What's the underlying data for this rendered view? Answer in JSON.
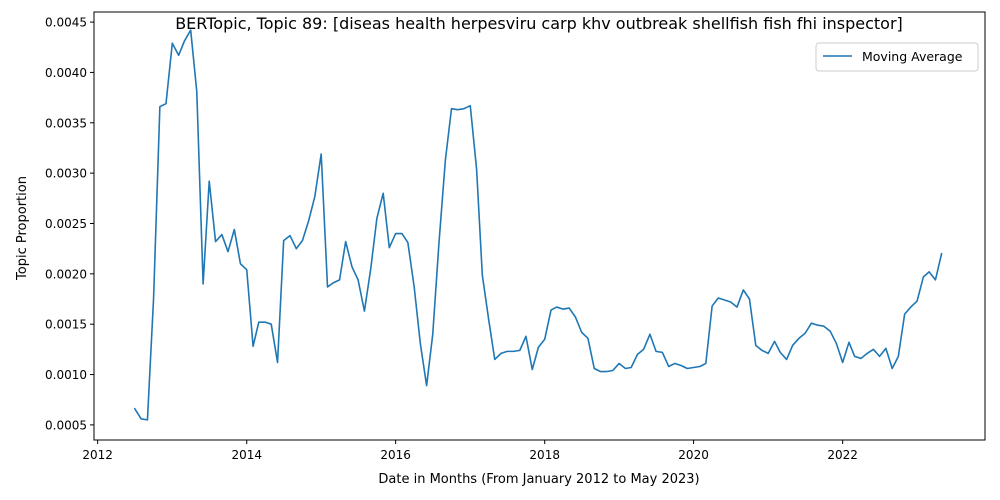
{
  "chart_data": {
    "type": "line",
    "title": "BERTopic, Topic 89: [diseas health herpesviru carp khv outbreak shellfish fish fhi inspector]",
    "xlabel": "Date in Months (From January 2012 to May 2023)",
    "ylabel": "Topic Proportion",
    "xlim": [
      "2011-12-14",
      "2023-11-30"
    ],
    "ylim": [
      0.00035,
      0.0046
    ],
    "xticks": [
      {
        "label": "2012",
        "date": "2012-01-01"
      },
      {
        "label": "2014",
        "date": "2014-01-01"
      },
      {
        "label": "2016",
        "date": "2016-01-01"
      },
      {
        "label": "2018",
        "date": "2018-01-01"
      },
      {
        "label": "2020",
        "date": "2020-01-01"
      },
      {
        "label": "2022",
        "date": "2022-01-01"
      }
    ],
    "yticks": [
      {
        "label": "0.0005",
        "value": 0.0005
      },
      {
        "label": "0.0010",
        "value": 0.001
      },
      {
        "label": "0.0015",
        "value": 0.0015
      },
      {
        "label": "0.0020",
        "value": 0.002
      },
      {
        "label": "0.0025",
        "value": 0.0025
      },
      {
        "label": "0.0030",
        "value": 0.003
      },
      {
        "label": "0.0035",
        "value": 0.0035
      },
      {
        "label": "0.0040",
        "value": 0.004
      },
      {
        "label": "0.0045",
        "value": 0.0045
      }
    ],
    "grid": false,
    "legend_position": "top-right",
    "series": [
      {
        "name": "Moving Average",
        "color": "#1f77b4",
        "x": [
          "2012-07",
          "2012-08",
          "2012-09",
          "2012-10",
          "2012-11",
          "2012-12",
          "2013-01",
          "2013-02",
          "2013-03",
          "2013-04",
          "2013-05",
          "2013-06",
          "2013-07",
          "2013-08",
          "2013-09",
          "2013-10",
          "2013-11",
          "2013-12",
          "2014-01",
          "2014-02",
          "2014-03",
          "2014-04",
          "2014-05",
          "2014-06",
          "2014-07",
          "2014-08",
          "2014-09",
          "2014-10",
          "2014-11",
          "2014-12",
          "2015-01",
          "2015-02",
          "2015-03",
          "2015-04",
          "2015-05",
          "2015-06",
          "2015-07",
          "2015-08",
          "2015-09",
          "2015-10",
          "2015-11",
          "2015-12",
          "2016-01",
          "2016-02",
          "2016-03",
          "2016-04",
          "2016-05",
          "2016-06",
          "2016-07",
          "2016-08",
          "2016-09",
          "2016-10",
          "2016-11",
          "2016-12",
          "2017-01",
          "2017-02",
          "2017-03",
          "2017-04",
          "2017-05",
          "2017-06",
          "2017-07",
          "2017-08",
          "2017-09",
          "2017-10",
          "2017-11",
          "2017-12",
          "2018-01",
          "2018-02",
          "2018-03",
          "2018-04",
          "2018-05",
          "2018-06",
          "2018-07",
          "2018-08",
          "2018-09",
          "2018-10",
          "2018-11",
          "2018-12",
          "2019-01",
          "2019-02",
          "2019-03",
          "2019-04",
          "2019-05",
          "2019-06",
          "2019-07",
          "2019-08",
          "2019-09",
          "2019-10",
          "2019-11",
          "2019-12",
          "2020-01",
          "2020-02",
          "2020-03",
          "2020-04",
          "2020-05",
          "2020-06",
          "2020-07",
          "2020-08",
          "2020-09",
          "2020-10",
          "2020-11",
          "2020-12",
          "2021-01",
          "2021-02",
          "2021-03",
          "2021-04",
          "2021-05",
          "2021-06",
          "2021-07",
          "2021-08",
          "2021-09",
          "2021-10",
          "2021-11",
          "2021-12",
          "2022-01",
          "2022-02",
          "2022-03",
          "2022-04",
          "2022-05",
          "2022-06",
          "2022-07",
          "2022-08",
          "2022-09",
          "2022-10",
          "2022-11",
          "2022-12",
          "2023-01",
          "2023-02",
          "2023-03",
          "2023-04",
          "2023-05"
        ],
        "values": [
          0.00066,
          0.00056,
          0.00055,
          0.00175,
          0.00366,
          0.00369,
          0.00429,
          0.00417,
          0.00431,
          0.00442,
          0.00381,
          0.0019,
          0.00292,
          0.00232,
          0.00239,
          0.00222,
          0.00244,
          0.0021,
          0.00204,
          0.00128,
          0.00152,
          0.00152,
          0.0015,
          0.00112,
          0.00233,
          0.00238,
          0.00225,
          0.00233,
          0.00253,
          0.00277,
          0.00319,
          0.00187,
          0.00191,
          0.00194,
          0.00232,
          0.00207,
          0.00194,
          0.00163,
          0.00205,
          0.00255,
          0.0028,
          0.00226,
          0.0024,
          0.0024,
          0.00231,
          0.00187,
          0.00131,
          0.00089,
          0.0014,
          0.00232,
          0.00313,
          0.00364,
          0.00363,
          0.00364,
          0.00367,
          0.00304,
          0.00199,
          0.00155,
          0.00115,
          0.00121,
          0.00123,
          0.00123,
          0.00124,
          0.00138,
          0.00105,
          0.00127,
          0.00135,
          0.00164,
          0.00167,
          0.00165,
          0.00166,
          0.00157,
          0.00142,
          0.00136,
          0.00106,
          0.00103,
          0.00103,
          0.00104,
          0.00111,
          0.00106,
          0.00107,
          0.0012,
          0.00125,
          0.0014,
          0.00123,
          0.00122,
          0.00108,
          0.00111,
          0.00109,
          0.00106,
          0.00107,
          0.00108,
          0.00111,
          0.00168,
          0.00176,
          0.00174,
          0.00172,
          0.00167,
          0.00184,
          0.00175,
          0.00129,
          0.00124,
          0.00121,
          0.00133,
          0.00122,
          0.00115,
          0.00129,
          0.00136,
          0.00141,
          0.00151,
          0.00149,
          0.00148,
          0.00143,
          0.00131,
          0.00112,
          0.00132,
          0.00118,
          0.00116,
          0.00121,
          0.00125,
          0.00118,
          0.00126,
          0.00106,
          0.00118,
          0.0016,
          0.00167,
          0.00173,
          0.00197,
          0.00202,
          0.00194,
          0.0022
        ]
      }
    ]
  }
}
